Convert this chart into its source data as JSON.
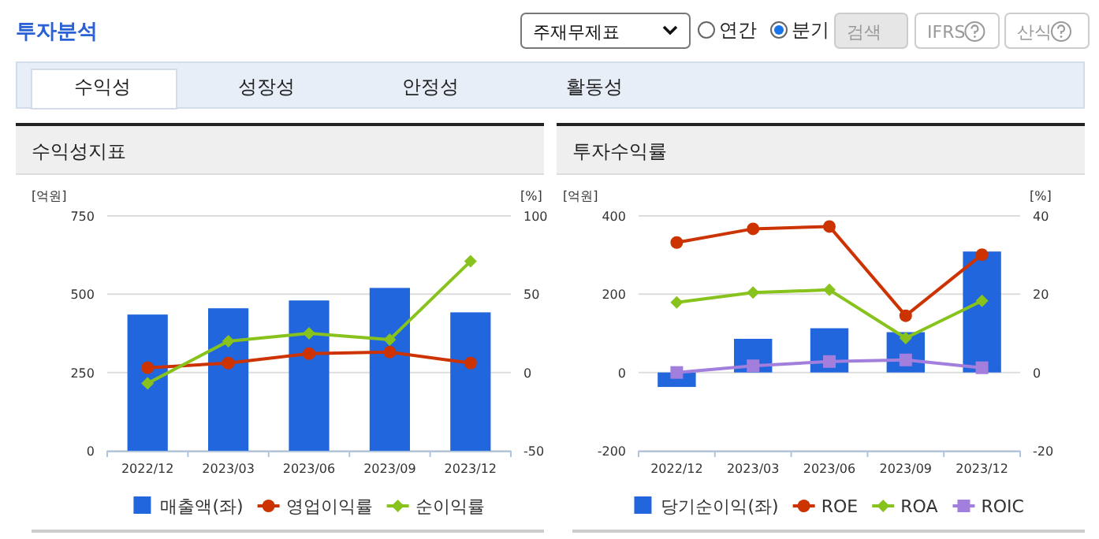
{
  "chart_data": [
    {
      "type": "other",
      "title": "투자분석",
      "annotations": [
        "주재무제표",
        "연간",
        "분기",
        "검색",
        "IFRS",
        "산식",
        "수익성",
        "성장성",
        "안정성",
        "활동성"
      ]
    },
    {
      "type": "bar",
      "title": "수익성지표",
      "ylabel": "[억원]",
      "y2label": "[%]",
      "categories": [
        "2022/12",
        "2023/03",
        "2023/06",
        "2023/09",
        "2023/12"
      ],
      "ylim": [
        0,
        750
      ],
      "yticks": [
        0,
        250,
        500,
        750
      ],
      "y2lim": [
        -50,
        100
      ],
      "y2ticks": [
        -50,
        0,
        50,
        100
      ],
      "grid": "y",
      "legend": "bottom",
      "series": [
        {
          "name": "매출액(좌)",
          "type": "bar",
          "color": "#2266dd",
          "values": [
            435,
            455,
            480,
            520,
            442
          ]
        },
        {
          "name": "영업이익률",
          "type": "line",
          "axis": "y2",
          "marker": "circle",
          "color": "#cc3300",
          "values": [
            3,
            6,
            12,
            13,
            6
          ]
        },
        {
          "name": "순이익률",
          "type": "line",
          "axis": "y2",
          "marker": "diamond",
          "color": "#88c21c",
          "values": [
            -7,
            20,
            25,
            21,
            71
          ]
        }
      ]
    },
    {
      "type": "bar",
      "title": "투자수익률",
      "ylabel": "[억원]",
      "y2label": "[%]",
      "categories": [
        "2022/12",
        "2023/03",
        "2023/06",
        "2023/09",
        "2023/12"
      ],
      "ylim": [
        -200,
        400
      ],
      "yticks": [
        -200,
        0,
        200,
        400
      ],
      "y2lim": [
        -20,
        40
      ],
      "y2ticks": [
        -20,
        0,
        20,
        40
      ],
      "grid": "y",
      "legend": "bottom",
      "series": [
        {
          "name": "당기순이익(좌)",
          "type": "bar",
          "color": "#2266dd",
          "values": [
            -37,
            86,
            113,
            103,
            309
          ]
        },
        {
          "name": "ROE",
          "type": "line",
          "axis": "y2",
          "marker": "circle",
          "color": "#cc3300",
          "values": [
            33.2,
            36.7,
            37.3,
            14.5,
            30.1
          ]
        },
        {
          "name": "ROA",
          "type": "line",
          "axis": "y2",
          "marker": "diamond",
          "color": "#88c21c",
          "values": [
            17.9,
            20.4,
            21.1,
            8.8,
            18.3
          ]
        },
        {
          "name": "ROIC",
          "type": "line",
          "axis": "y2",
          "marker": "square",
          "color": "#a27fdc",
          "values": [
            0,
            1.7,
            2.8,
            3.2,
            1.2
          ]
        }
      ]
    }
  ]
}
